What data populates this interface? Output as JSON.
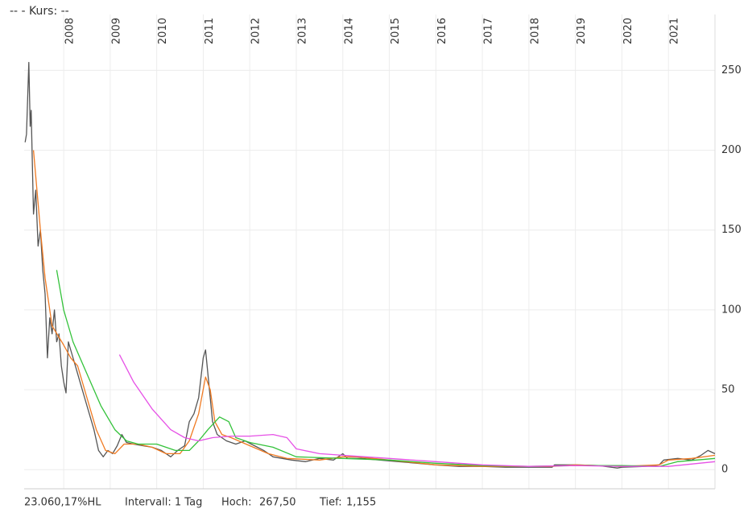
{
  "header": {
    "title": "--  - Kurs: --"
  },
  "footer": {
    "range": "23.060,17%HL",
    "interval": "Intervall: 1 Tag",
    "high_label": "Hoch:",
    "high": "267,50",
    "low_label": "Tief:",
    "low": "1,155"
  },
  "chart_data": {
    "type": "line",
    "xlim": [
      2007.15,
      2022.0
    ],
    "xticks": [
      2008,
      2009,
      2010,
      2011,
      2012,
      2013,
      2014,
      2015,
      2016,
      2017,
      2018,
      2019,
      2020,
      2021
    ],
    "ylim": [
      -12,
      285
    ],
    "yticks": [
      0,
      50,
      100,
      150,
      200,
      250
    ],
    "grid": true,
    "series": [
      {
        "color": "#555555",
        "x": [
          2007.17,
          2007.2,
          2007.25,
          2007.28,
          2007.3,
          2007.35,
          2007.4,
          2007.45,
          2007.5,
          2007.55,
          2007.6,
          2007.65,
          2007.7,
          2007.75,
          2007.8,
          2007.85,
          2007.9,
          2007.95,
          2008.0,
          2008.05,
          2008.1,
          2008.15,
          2008.25,
          2008.35,
          2008.45,
          2008.55,
          2008.65,
          2008.75,
          2008.85,
          2008.95,
          2009.05,
          2009.15,
          2009.25,
          2009.35,
          2009.5,
          2009.7,
          2009.9,
          2010.1,
          2010.3,
          2010.45,
          2010.6,
          2010.7,
          2010.8,
          2010.9,
          2011.0,
          2011.05,
          2011.1,
          2011.15,
          2011.2,
          2011.3,
          2011.5,
          2011.7,
          2011.9,
          2012.1,
          2012.3,
          2012.5,
          2012.7,
          2012.9,
          2013.2,
          2013.5,
          2013.8,
          2014.0,
          2014.1,
          2014.4,
          2014.8,
          2015.2,
          2015.6,
          2016.0,
          2016.5,
          2017.0,
          2017.5,
          2018.0,
          2018.5,
          2018.55,
          2019.0,
          2019.5,
          2019.9,
          2020.0,
          2020.5,
          2020.8,
          2020.9,
          2021.2,
          2021.5,
          2021.7,
          2021.85,
          2022.0
        ],
        "values": [
          205,
          210,
          255,
          215,
          225,
          160,
          175,
          140,
          150,
          125,
          110,
          70,
          95,
          85,
          100,
          80,
          85,
          65,
          55,
          48,
          80,
          75,
          65,
          55,
          45,
          35,
          25,
          12,
          8,
          12,
          10,
          15,
          22,
          17,
          16,
          15,
          14,
          12,
          8,
          12,
          15,
          30,
          35,
          45,
          70,
          75,
          60,
          45,
          30,
          22,
          18,
          16,
          18,
          15,
          12,
          8,
          7,
          6,
          5,
          7,
          6,
          10,
          7,
          7,
          6,
          5,
          4,
          3,
          2,
          2,
          1.5,
          1.5,
          1.5,
          3,
          3,
          2.5,
          1,
          1.5,
          2,
          3,
          6,
          7,
          6,
          9,
          12,
          10
        ]
      },
      {
        "color": "#f07a22",
        "x": [
          2007.35,
          2007.5,
          2007.6,
          2007.75,
          2008.0,
          2008.15,
          2008.3,
          2008.5,
          2008.7,
          2008.9,
          2009.1,
          2009.3,
          2009.6,
          2009.9,
          2010.2,
          2010.5,
          2010.7,
          2010.9,
          2011.05,
          2011.15,
          2011.25,
          2011.4,
          2011.6,
          2012.0,
          2012.4,
          2012.8,
          2013.5,
          2014.0,
          2014.3,
          2015.0,
          2016.0,
          2017.0,
          2018.5,
          2019.0,
          2020.0,
          2020.8,
          2021.0,
          2021.5,
          2022.0
        ],
        "values": [
          200,
          150,
          120,
          90,
          78,
          70,
          65,
          45,
          25,
          12,
          10,
          16,
          16,
          14,
          10,
          10,
          18,
          35,
          58,
          50,
          30,
          22,
          20,
          15,
          10,
          7,
          6,
          8,
          8,
          6,
          3,
          2,
          2,
          3,
          2,
          3,
          6,
          7,
          9
        ]
      },
      {
        "color": "#33c23a",
        "x": [
          2007.85,
          2008.0,
          2008.2,
          2008.5,
          2008.8,
          2009.1,
          2009.35,
          2009.6,
          2010.0,
          2010.4,
          2010.7,
          2010.9,
          2011.1,
          2011.35,
          2011.55,
          2011.7,
          2012.0,
          2012.5,
          2013.0,
          2014.0,
          2015.0,
          2016.0,
          2017.0,
          2018.0,
          2019.0,
          2020.0,
          2020.8,
          2021.2,
          2022.0
        ],
        "values": [
          125,
          100,
          80,
          60,
          40,
          25,
          18,
          16,
          16,
          12,
          12,
          18,
          25,
          33,
          30,
          20,
          17,
          14,
          8,
          7,
          6,
          4,
          2.5,
          2,
          2.5,
          2.5,
          2,
          5,
          7
        ]
      },
      {
        "color": "#e651e6",
        "x": [
          2009.2,
          2009.5,
          2009.9,
          2010.3,
          2010.6,
          2010.9,
          2011.2,
          2011.6,
          2012.0,
          2012.5,
          2012.8,
          2013.0,
          2013.5,
          2014.0,
          2015.0,
          2016.0,
          2017.0,
          2018.0,
          2019.0,
          2020.0,
          2021.0,
          2022.0
        ],
        "values": [
          72,
          55,
          38,
          25,
          20,
          18,
          20,
          21,
          21,
          22,
          20,
          13,
          10,
          9,
          7,
          5,
          3,
          2,
          2.5,
          2,
          2,
          5
        ]
      }
    ]
  }
}
